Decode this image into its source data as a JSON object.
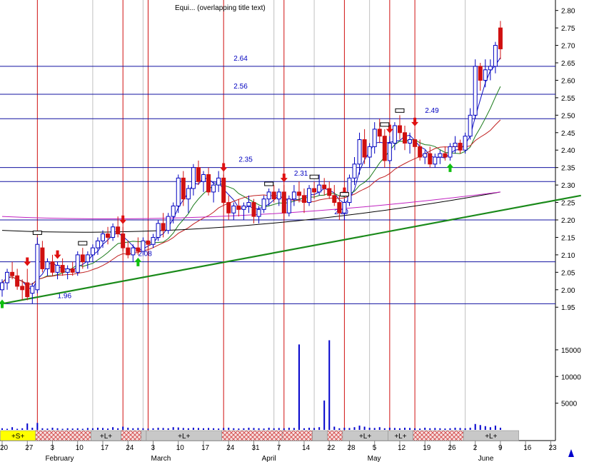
{
  "title": "Equi... (overlapping title text)",
  "colors": {
    "price_bg": "#ffffff",
    "hline": "#1010a0",
    "vline_red": "#d01010",
    "vline_grey": "#c0c0c0",
    "trend": "#1a8a1a",
    "ma_short": "#1010c0",
    "ma_mid": "#1a7a1a",
    "ma_long": "#c02020",
    "ma_magenta": "#c020c0",
    "ma_black": "#000000",
    "up_arrow": "#10c010",
    "down_arrow": "#e01010",
    "volume": "#0000cc"
  },
  "chart_data": {
    "type": "candlestick",
    "price_axis": {
      "ticks": [
        "1.95",
        "2.00",
        "2.05",
        "2.10",
        "2.15",
        "2.20",
        "2.25",
        "2.30",
        "2.35",
        "2.40",
        "2.45",
        "2.50",
        "2.55",
        "2.60",
        "2.65",
        "2.70",
        "2.75",
        "2.80"
      ],
      "range": [
        1.93,
        2.83
      ]
    },
    "volume_axis": {
      "ticks": [
        "5000",
        "10000",
        "15000"
      ],
      "range": [
        0,
        19000
      ]
    },
    "x_ticks": [
      {
        "label": "20",
        "i": 0
      },
      {
        "label": "27",
        "i": 5
      },
      {
        "label": "3",
        "i": 10
      },
      {
        "label": "10",
        "i": 15
      },
      {
        "label": "17",
        "i": 20
      },
      {
        "label": "24",
        "i": 25
      },
      {
        "label": "3",
        "i": 30
      },
      {
        "label": "10",
        "i": 35
      },
      {
        "label": "17",
        "i": 40
      },
      {
        "label": "24",
        "i": 45
      },
      {
        "label": "31",
        "i": 50
      },
      {
        "label": "7",
        "i": 55
      },
      {
        "label": "14",
        "i": 60
      },
      {
        "label": "22",
        "i": 65
      },
      {
        "label": "28",
        "i": 69
      },
      {
        "label": "5",
        "i": 74
      },
      {
        "label": "12",
        "i": 79
      },
      {
        "label": "19",
        "i": 84
      },
      {
        "label": "26",
        "i": 89
      },
      {
        "label": "2",
        "i": 94
      },
      {
        "label": "9",
        "i": 99
      },
      {
        "label": "16",
        "i": 104
      },
      {
        "label": "23",
        "i": 109
      }
    ],
    "months": [
      {
        "label": "February",
        "i": 9
      },
      {
        "label": "March",
        "i": 30
      },
      {
        "label": "April",
        "i": 52
      },
      {
        "label": "May",
        "i": 73
      },
      {
        "label": "June",
        "i": 95
      }
    ],
    "levels": [
      {
        "value": 2.64,
        "label": "2.64",
        "at": 46
      },
      {
        "value": 2.56,
        "label": "2.56",
        "at": 46
      },
      {
        "value": 2.49,
        "label": "2.49",
        "at": 84
      },
      {
        "value": 2.35,
        "label": "2.35",
        "at": 47
      },
      {
        "value": 2.31,
        "label": "2.31",
        "at": 58
      },
      {
        "value": 2.2,
        "label": "2.20",
        "at": 66
      },
      {
        "value": 2.08,
        "label": "2.08",
        "at": 27
      },
      {
        "value": 1.96,
        "label": "1.96",
        "at": 11
      }
    ],
    "red_vlines": [
      7,
      24,
      29,
      44,
      56,
      68,
      77,
      82
    ],
    "grey_vlines": [
      18,
      28,
      54,
      62,
      73,
      92
    ],
    "trendline": [
      {
        "i": 0,
        "v": 1.96
      },
      {
        "i": 115,
        "v": 2.27
      }
    ],
    "candles": [
      {
        "o": 2.0,
        "h": 2.03,
        "l": 1.98,
        "c": 2.02
      },
      {
        "o": 2.02,
        "h": 2.06,
        "l": 2.0,
        "c": 2.05
      },
      {
        "o": 2.05,
        "h": 2.08,
        "l": 2.03,
        "c": 2.04
      },
      {
        "o": 2.04,
        "h": 2.06,
        "l": 2.0,
        "c": 2.01
      },
      {
        "o": 2.01,
        "h": 2.03,
        "l": 1.97,
        "c": 2.0
      },
      {
        "o": 2.02,
        "h": 2.06,
        "l": 1.97,
        "c": 1.98
      },
      {
        "o": 1.99,
        "h": 2.02,
        "l": 1.96,
        "c": 2.01
      },
      {
        "o": 2.0,
        "h": 2.15,
        "l": 1.99,
        "c": 2.13
      },
      {
        "o": 2.12,
        "h": 2.14,
        "l": 2.05,
        "c": 2.06
      },
      {
        "o": 2.06,
        "h": 2.09,
        "l": 2.04,
        "c": 2.08
      },
      {
        "o": 2.08,
        "h": 2.1,
        "l": 2.04,
        "c": 2.05
      },
      {
        "o": 2.05,
        "h": 2.08,
        "l": 2.03,
        "c": 2.07
      },
      {
        "o": 2.07,
        "h": 2.09,
        "l": 2.04,
        "c": 2.05
      },
      {
        "o": 2.05,
        "h": 2.07,
        "l": 2.03,
        "c": 2.06
      },
      {
        "o": 2.06,
        "h": 2.08,
        "l": 2.04,
        "c": 2.05
      },
      {
        "o": 2.05,
        "h": 2.11,
        "l": 2.04,
        "c": 2.1
      },
      {
        "o": 2.1,
        "h": 2.12,
        "l": 2.06,
        "c": 2.08
      },
      {
        "o": 2.08,
        "h": 2.11,
        "l": 2.06,
        "c": 2.1
      },
      {
        "o": 2.1,
        "h": 2.13,
        "l": 2.08,
        "c": 2.12
      },
      {
        "o": 2.12,
        "h": 2.15,
        "l": 2.1,
        "c": 2.14
      },
      {
        "o": 2.14,
        "h": 2.17,
        "l": 2.12,
        "c": 2.16
      },
      {
        "o": 2.16,
        "h": 2.18,
        "l": 2.13,
        "c": 2.15
      },
      {
        "o": 2.15,
        "h": 2.19,
        "l": 2.14,
        "c": 2.18
      },
      {
        "o": 2.18,
        "h": 2.21,
        "l": 2.15,
        "c": 2.16
      },
      {
        "o": 2.16,
        "h": 2.18,
        "l": 2.11,
        "c": 2.12
      },
      {
        "o": 2.12,
        "h": 2.14,
        "l": 2.09,
        "c": 2.1
      },
      {
        "o": 2.1,
        "h": 2.13,
        "l": 2.08,
        "c": 2.12
      },
      {
        "o": 2.12,
        "h": 2.15,
        "l": 2.1,
        "c": 2.11
      },
      {
        "o": 2.11,
        "h": 2.15,
        "l": 2.1,
        "c": 2.14
      },
      {
        "o": 2.14,
        "h": 2.16,
        "l": 2.12,
        "c": 2.13
      },
      {
        "o": 2.13,
        "h": 2.16,
        "l": 2.12,
        "c": 2.15
      },
      {
        "o": 2.15,
        "h": 2.2,
        "l": 2.14,
        "c": 2.19
      },
      {
        "o": 2.19,
        "h": 2.22,
        "l": 2.15,
        "c": 2.17
      },
      {
        "o": 2.17,
        "h": 2.22,
        "l": 2.16,
        "c": 2.21
      },
      {
        "o": 2.21,
        "h": 2.25,
        "l": 2.19,
        "c": 2.24
      },
      {
        "o": 2.24,
        "h": 2.33,
        "l": 2.22,
        "c": 2.32
      },
      {
        "o": 2.32,
        "h": 2.34,
        "l": 2.24,
        "c": 2.26
      },
      {
        "o": 2.26,
        "h": 2.3,
        "l": 2.22,
        "c": 2.29
      },
      {
        "o": 2.29,
        "h": 2.36,
        "l": 2.27,
        "c": 2.35
      },
      {
        "o": 2.35,
        "h": 2.37,
        "l": 2.3,
        "c": 2.31
      },
      {
        "o": 2.31,
        "h": 2.34,
        "l": 2.28,
        "c": 2.33
      },
      {
        "o": 2.33,
        "h": 2.35,
        "l": 2.27,
        "c": 2.28
      },
      {
        "o": 2.28,
        "h": 2.31,
        "l": 2.25,
        "c": 2.3
      },
      {
        "o": 2.3,
        "h": 2.34,
        "l": 2.28,
        "c": 2.32
      },
      {
        "o": 2.32,
        "h": 2.33,
        "l": 2.24,
        "c": 2.25
      },
      {
        "o": 2.25,
        "h": 2.27,
        "l": 2.2,
        "c": 2.22
      },
      {
        "o": 2.22,
        "h": 2.25,
        "l": 2.2,
        "c": 2.24
      },
      {
        "o": 2.24,
        "h": 2.26,
        "l": 2.21,
        "c": 2.23
      },
      {
        "o": 2.23,
        "h": 2.25,
        "l": 2.2,
        "c": 2.24
      },
      {
        "o": 2.24,
        "h": 2.27,
        "l": 2.22,
        "c": 2.25
      },
      {
        "o": 2.25,
        "h": 2.26,
        "l": 2.19,
        "c": 2.21
      },
      {
        "o": 2.21,
        "h": 2.24,
        "l": 2.19,
        "c": 2.23
      },
      {
        "o": 2.23,
        "h": 2.27,
        "l": 2.22,
        "c": 2.26
      },
      {
        "o": 2.26,
        "h": 2.29,
        "l": 2.24,
        "c": 2.28
      },
      {
        "o": 2.28,
        "h": 2.3,
        "l": 2.25,
        "c": 2.26
      },
      {
        "o": 2.26,
        "h": 2.29,
        "l": 2.24,
        "c": 2.28
      },
      {
        "o": 2.28,
        "h": 2.3,
        "l": 2.2,
        "c": 2.22
      },
      {
        "o": 2.22,
        "h": 2.27,
        "l": 2.21,
        "c": 2.26
      },
      {
        "o": 2.26,
        "h": 2.3,
        "l": 2.24,
        "c": 2.28
      },
      {
        "o": 2.28,
        "h": 2.31,
        "l": 2.25,
        "c": 2.27
      },
      {
        "o": 2.27,
        "h": 2.29,
        "l": 2.22,
        "c": 2.25
      },
      {
        "o": 2.25,
        "h": 2.3,
        "l": 2.24,
        "c": 2.29
      },
      {
        "o": 2.29,
        "h": 2.31,
        "l": 2.26,
        "c": 2.28
      },
      {
        "o": 2.28,
        "h": 2.33,
        "l": 2.27,
        "c": 2.3
      },
      {
        "o": 2.3,
        "h": 2.32,
        "l": 2.27,
        "c": 2.29
      },
      {
        "o": 2.29,
        "h": 2.31,
        "l": 2.26,
        "c": 2.27
      },
      {
        "o": 2.27,
        "h": 2.3,
        "l": 2.24,
        "c": 2.25
      },
      {
        "o": 2.25,
        "h": 2.27,
        "l": 2.2,
        "c": 2.22
      },
      {
        "o": 2.22,
        "h": 2.26,
        "l": 2.2,
        "c": 2.25
      },
      {
        "o": 2.25,
        "h": 2.33,
        "l": 2.24,
        "c": 2.32
      },
      {
        "o": 2.32,
        "h": 2.38,
        "l": 2.3,
        "c": 2.36
      },
      {
        "o": 2.36,
        "h": 2.45,
        "l": 2.33,
        "c": 2.43
      },
      {
        "o": 2.43,
        "h": 2.46,
        "l": 2.36,
        "c": 2.38
      },
      {
        "o": 2.38,
        "h": 2.42,
        "l": 2.35,
        "c": 2.41
      },
      {
        "o": 2.41,
        "h": 2.48,
        "l": 2.39,
        "c": 2.46
      },
      {
        "o": 2.46,
        "h": 2.49,
        "l": 2.42,
        "c": 2.44
      },
      {
        "o": 2.44,
        "h": 2.46,
        "l": 2.35,
        "c": 2.37
      },
      {
        "o": 2.37,
        "h": 2.44,
        "l": 2.36,
        "c": 2.42
      },
      {
        "o": 2.42,
        "h": 2.48,
        "l": 2.4,
        "c": 2.47
      },
      {
        "o": 2.47,
        "h": 2.5,
        "l": 2.43,
        "c": 2.45
      },
      {
        "o": 2.45,
        "h": 2.47,
        "l": 2.4,
        "c": 2.42
      },
      {
        "o": 2.42,
        "h": 2.45,
        "l": 2.39,
        "c": 2.43
      },
      {
        "o": 2.43,
        "h": 2.46,
        "l": 2.4,
        "c": 2.41
      },
      {
        "o": 2.41,
        "h": 2.43,
        "l": 2.37,
        "c": 2.38
      },
      {
        "o": 2.38,
        "h": 2.4,
        "l": 2.36,
        "c": 2.39
      },
      {
        "o": 2.39,
        "h": 2.41,
        "l": 2.35,
        "c": 2.36
      },
      {
        "o": 2.36,
        "h": 2.39,
        "l": 2.35,
        "c": 2.38
      },
      {
        "o": 2.38,
        "h": 2.4,
        "l": 2.36,
        "c": 2.39
      },
      {
        "o": 2.39,
        "h": 2.41,
        "l": 2.37,
        "c": 2.38
      },
      {
        "o": 2.38,
        "h": 2.42,
        "l": 2.37,
        "c": 2.41
      },
      {
        "o": 2.41,
        "h": 2.44,
        "l": 2.39,
        "c": 2.42
      },
      {
        "o": 2.42,
        "h": 2.43,
        "l": 2.39,
        "c": 2.4
      },
      {
        "o": 2.4,
        "h": 2.45,
        "l": 2.39,
        "c": 2.44
      },
      {
        "o": 2.44,
        "h": 2.52,
        "l": 2.43,
        "c": 2.5
      },
      {
        "o": 2.5,
        "h": 2.66,
        "l": 2.49,
        "c": 2.64
      },
      {
        "o": 2.64,
        "h": 2.65,
        "l": 2.57,
        "c": 2.6
      },
      {
        "o": 2.6,
        "h": 2.66,
        "l": 2.58,
        "c": 2.63
      },
      {
        "o": 2.63,
        "h": 2.66,
        "l": 2.6,
        "c": 2.64
      },
      {
        "o": 2.64,
        "h": 2.71,
        "l": 2.62,
        "c": 2.7
      },
      {
        "o": 2.75,
        "h": 2.77,
        "l": 2.66,
        "c": 2.69
      }
    ],
    "volume": [
      300,
      200,
      500,
      200,
      300,
      1200,
      400,
      1300,
      300,
      250,
      400,
      300,
      200,
      300,
      250,
      300,
      200,
      350,
      300,
      400,
      350,
      250,
      500,
      300,
      600,
      400,
      300,
      350,
      300,
      250,
      300,
      400,
      350,
      300,
      500,
      450,
      350,
      300,
      400,
      350,
      300,
      350,
      300,
      250,
      350,
      400,
      300,
      250,
      300,
      400,
      350,
      300,
      250,
      400,
      300,
      350,
      300,
      400,
      350,
      16000,
      300,
      400,
      350,
      500,
      5500,
      16800,
      600,
      300,
      400,
      350,
      500,
      800,
      600,
      400,
      350,
      500,
      300,
      400,
      350,
      300,
      400,
      350,
      300,
      250,
      400,
      300,
      350,
      300,
      250,
      300,
      400,
      350,
      300,
      400,
      1100,
      900,
      700,
      500,
      800,
      400
    ],
    "signals_up": [
      0,
      27,
      89
    ],
    "signals_down": [
      5,
      11,
      24,
      44,
      56,
      68,
      77,
      82
    ],
    "boxes": [
      7,
      16,
      53,
      62,
      68,
      76,
      79
    ],
    "ma": [
      {
        "name": "black",
        "color": "#000000",
        "v0": 2.17,
        "v1": 2.28
      },
      {
        "name": "magenta",
        "color": "#c020c0",
        "v0": 2.21,
        "v1": 2.28
      }
    ],
    "bands": [
      {
        "label": "+S+",
        "from": 0,
        "to": 7,
        "kind": "yellow"
      },
      {
        "label": "",
        "from": 7,
        "to": 18,
        "kind": "hatch"
      },
      {
        "label": "+L+",
        "from": 18,
        "to": 24,
        "kind": "grey"
      },
      {
        "label": "",
        "from": 24,
        "to": 28,
        "kind": "hatch"
      },
      {
        "label": "",
        "from": 28,
        "to": 29,
        "kind": "grey"
      },
      {
        "label": "+L+",
        "from": 29,
        "to": 44,
        "kind": "grey"
      },
      {
        "label": "",
        "from": 44,
        "to": 56,
        "kind": "hatch"
      },
      {
        "label": "",
        "from": 56,
        "to": 62,
        "kind": "hatch"
      },
      {
        "label": "",
        "from": 62,
        "to": 65,
        "kind": "grey"
      },
      {
        "label": "",
        "from": 65,
        "to": 68,
        "kind": "hatch"
      },
      {
        "label": "+L+",
        "from": 68,
        "to": 77,
        "kind": "grey"
      },
      {
        "label": "+L+",
        "from": 77,
        "to": 82,
        "kind": "grey"
      },
      {
        "label": "",
        "from": 82,
        "to": 92,
        "kind": "hatch"
      },
      {
        "label": "+L+",
        "from": 92,
        "to": 103,
        "kind": "grey"
      }
    ]
  }
}
